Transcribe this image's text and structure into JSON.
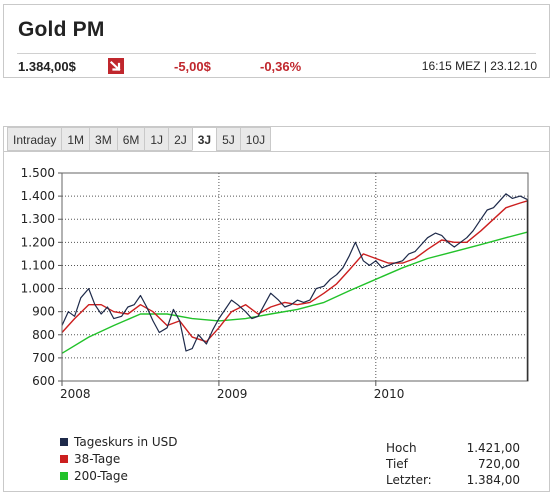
{
  "quote": {
    "title": "Gold PM",
    "price": "1.384,00$",
    "change": "-5,00$",
    "change_pct": "-0,36%",
    "time": "16:15 MEZ | 23.12.10",
    "trend_icon": "down-arrow-icon",
    "down_color": "#c0272d"
  },
  "tabs": [
    {
      "label": "Intraday"
    },
    {
      "label": "1M"
    },
    {
      "label": "3M"
    },
    {
      "label": "6M"
    },
    {
      "label": "1J"
    },
    {
      "label": "2J"
    },
    {
      "label": "3J",
      "active": true
    },
    {
      "label": "5J"
    },
    {
      "label": "10J"
    }
  ],
  "chart_data": {
    "type": "line",
    "x_start": 2008.0,
    "x_end": 2010.97,
    "ylim": [
      600,
      1500
    ],
    "y_ticks": [
      "1.500",
      "1.400",
      "1.300",
      "1.200",
      "1.100",
      "1.000",
      "900",
      "800",
      "700",
      "600"
    ],
    "y_tick_values": [
      1500,
      1400,
      1300,
      1200,
      1100,
      1000,
      900,
      800,
      700,
      600
    ],
    "x_ticks": [
      "2008",
      "2009",
      "2010"
    ],
    "x_tick_values": [
      2008,
      2009,
      2010
    ],
    "grid": true,
    "series": [
      {
        "name": "Tageskurs in USD",
        "color": "#1e2a4a",
        "points": [
          [
            2008.0,
            840
          ],
          [
            2008.04,
            900
          ],
          [
            2008.08,
            880
          ],
          [
            2008.12,
            960
          ],
          [
            2008.17,
            1000
          ],
          [
            2008.21,
            930
          ],
          [
            2008.25,
            890
          ],
          [
            2008.29,
            920
          ],
          [
            2008.33,
            870
          ],
          [
            2008.38,
            880
          ],
          [
            2008.42,
            920
          ],
          [
            2008.46,
            930
          ],
          [
            2008.5,
            970
          ],
          [
            2008.54,
            920
          ],
          [
            2008.58,
            860
          ],
          [
            2008.62,
            810
          ],
          [
            2008.67,
            830
          ],
          [
            2008.71,
            910
          ],
          [
            2008.75,
            860
          ],
          [
            2008.79,
            730
          ],
          [
            2008.83,
            740
          ],
          [
            2008.87,
            800
          ],
          [
            2008.92,
            760
          ],
          [
            2008.96,
            820
          ],
          [
            2009.0,
            870
          ],
          [
            2009.04,
            910
          ],
          [
            2009.08,
            950
          ],
          [
            2009.12,
            930
          ],
          [
            2009.17,
            900
          ],
          [
            2009.21,
            870
          ],
          [
            2009.25,
            880
          ],
          [
            2009.29,
            930
          ],
          [
            2009.33,
            980
          ],
          [
            2009.38,
            950
          ],
          [
            2009.42,
            920
          ],
          [
            2009.46,
            930
          ],
          [
            2009.5,
            950
          ],
          [
            2009.54,
            940
          ],
          [
            2009.58,
            950
          ],
          [
            2009.62,
            1000
          ],
          [
            2009.67,
            1010
          ],
          [
            2009.71,
            1040
          ],
          [
            2009.75,
            1060
          ],
          [
            2009.79,
            1090
          ],
          [
            2009.83,
            1140
          ],
          [
            2009.87,
            1200
          ],
          [
            2009.92,
            1120
          ],
          [
            2009.96,
            1100
          ],
          [
            2010.0,
            1120
          ],
          [
            2010.04,
            1090
          ],
          [
            2010.08,
            1100
          ],
          [
            2010.12,
            1110
          ],
          [
            2010.17,
            1120
          ],
          [
            2010.21,
            1150
          ],
          [
            2010.25,
            1160
          ],
          [
            2010.29,
            1190
          ],
          [
            2010.33,
            1220
          ],
          [
            2010.38,
            1240
          ],
          [
            2010.42,
            1230
          ],
          [
            2010.46,
            1200
          ],
          [
            2010.5,
            1180
          ],
          [
            2010.54,
            1200
          ],
          [
            2010.58,
            1220
          ],
          [
            2010.62,
            1250
          ],
          [
            2010.67,
            1300
          ],
          [
            2010.71,
            1340
          ],
          [
            2010.75,
            1350
          ],
          [
            2010.79,
            1380
          ],
          [
            2010.83,
            1410
          ],
          [
            2010.87,
            1390
          ],
          [
            2010.92,
            1400
          ],
          [
            2010.97,
            1384
          ]
        ]
      },
      {
        "name": "38-Tage",
        "color": "#cc1f1f",
        "points": [
          [
            2008.0,
            810
          ],
          [
            2008.08,
            870
          ],
          [
            2008.17,
            930
          ],
          [
            2008.25,
            930
          ],
          [
            2008.33,
            900
          ],
          [
            2008.42,
            890
          ],
          [
            2008.5,
            930
          ],
          [
            2008.58,
            900
          ],
          [
            2008.67,
            840
          ],
          [
            2008.75,
            860
          ],
          [
            2008.83,
            790
          ],
          [
            2008.92,
            770
          ],
          [
            2009.0,
            830
          ],
          [
            2009.08,
            900
          ],
          [
            2009.17,
            930
          ],
          [
            2009.25,
            890
          ],
          [
            2009.33,
            920
          ],
          [
            2009.42,
            940
          ],
          [
            2009.5,
            930
          ],
          [
            2009.58,
            940
          ],
          [
            2009.67,
            980
          ],
          [
            2009.75,
            1020
          ],
          [
            2009.83,
            1080
          ],
          [
            2009.92,
            1150
          ],
          [
            2010.0,
            1130
          ],
          [
            2010.08,
            1110
          ],
          [
            2010.17,
            1110
          ],
          [
            2010.25,
            1130
          ],
          [
            2010.33,
            1170
          ],
          [
            2010.42,
            1210
          ],
          [
            2010.5,
            1200
          ],
          [
            2010.58,
            1200
          ],
          [
            2010.67,
            1250
          ],
          [
            2010.75,
            1300
          ],
          [
            2010.83,
            1350
          ],
          [
            2010.92,
            1370
          ],
          [
            2010.97,
            1380
          ]
        ]
      },
      {
        "name": "200-Tage",
        "color": "#22c22a",
        "points": [
          [
            2008.0,
            720
          ],
          [
            2008.17,
            790
          ],
          [
            2008.33,
            840
          ],
          [
            2008.5,
            890
          ],
          [
            2008.67,
            890
          ],
          [
            2008.83,
            870
          ],
          [
            2009.0,
            860
          ],
          [
            2009.17,
            870
          ],
          [
            2009.33,
            890
          ],
          [
            2009.5,
            910
          ],
          [
            2009.67,
            940
          ],
          [
            2009.83,
            990
          ],
          [
            2010.0,
            1040
          ],
          [
            2010.17,
            1090
          ],
          [
            2010.33,
            1130
          ],
          [
            2010.5,
            1160
          ],
          [
            2010.67,
            1190
          ],
          [
            2010.83,
            1220
          ],
          [
            2010.97,
            1245
          ]
        ]
      }
    ],
    "stats": {
      "labels": [
        "Hoch",
        "Tief",
        "Letzter:"
      ],
      "values": [
        "1.421,00",
        "720,00",
        "1.384,00"
      ]
    }
  }
}
